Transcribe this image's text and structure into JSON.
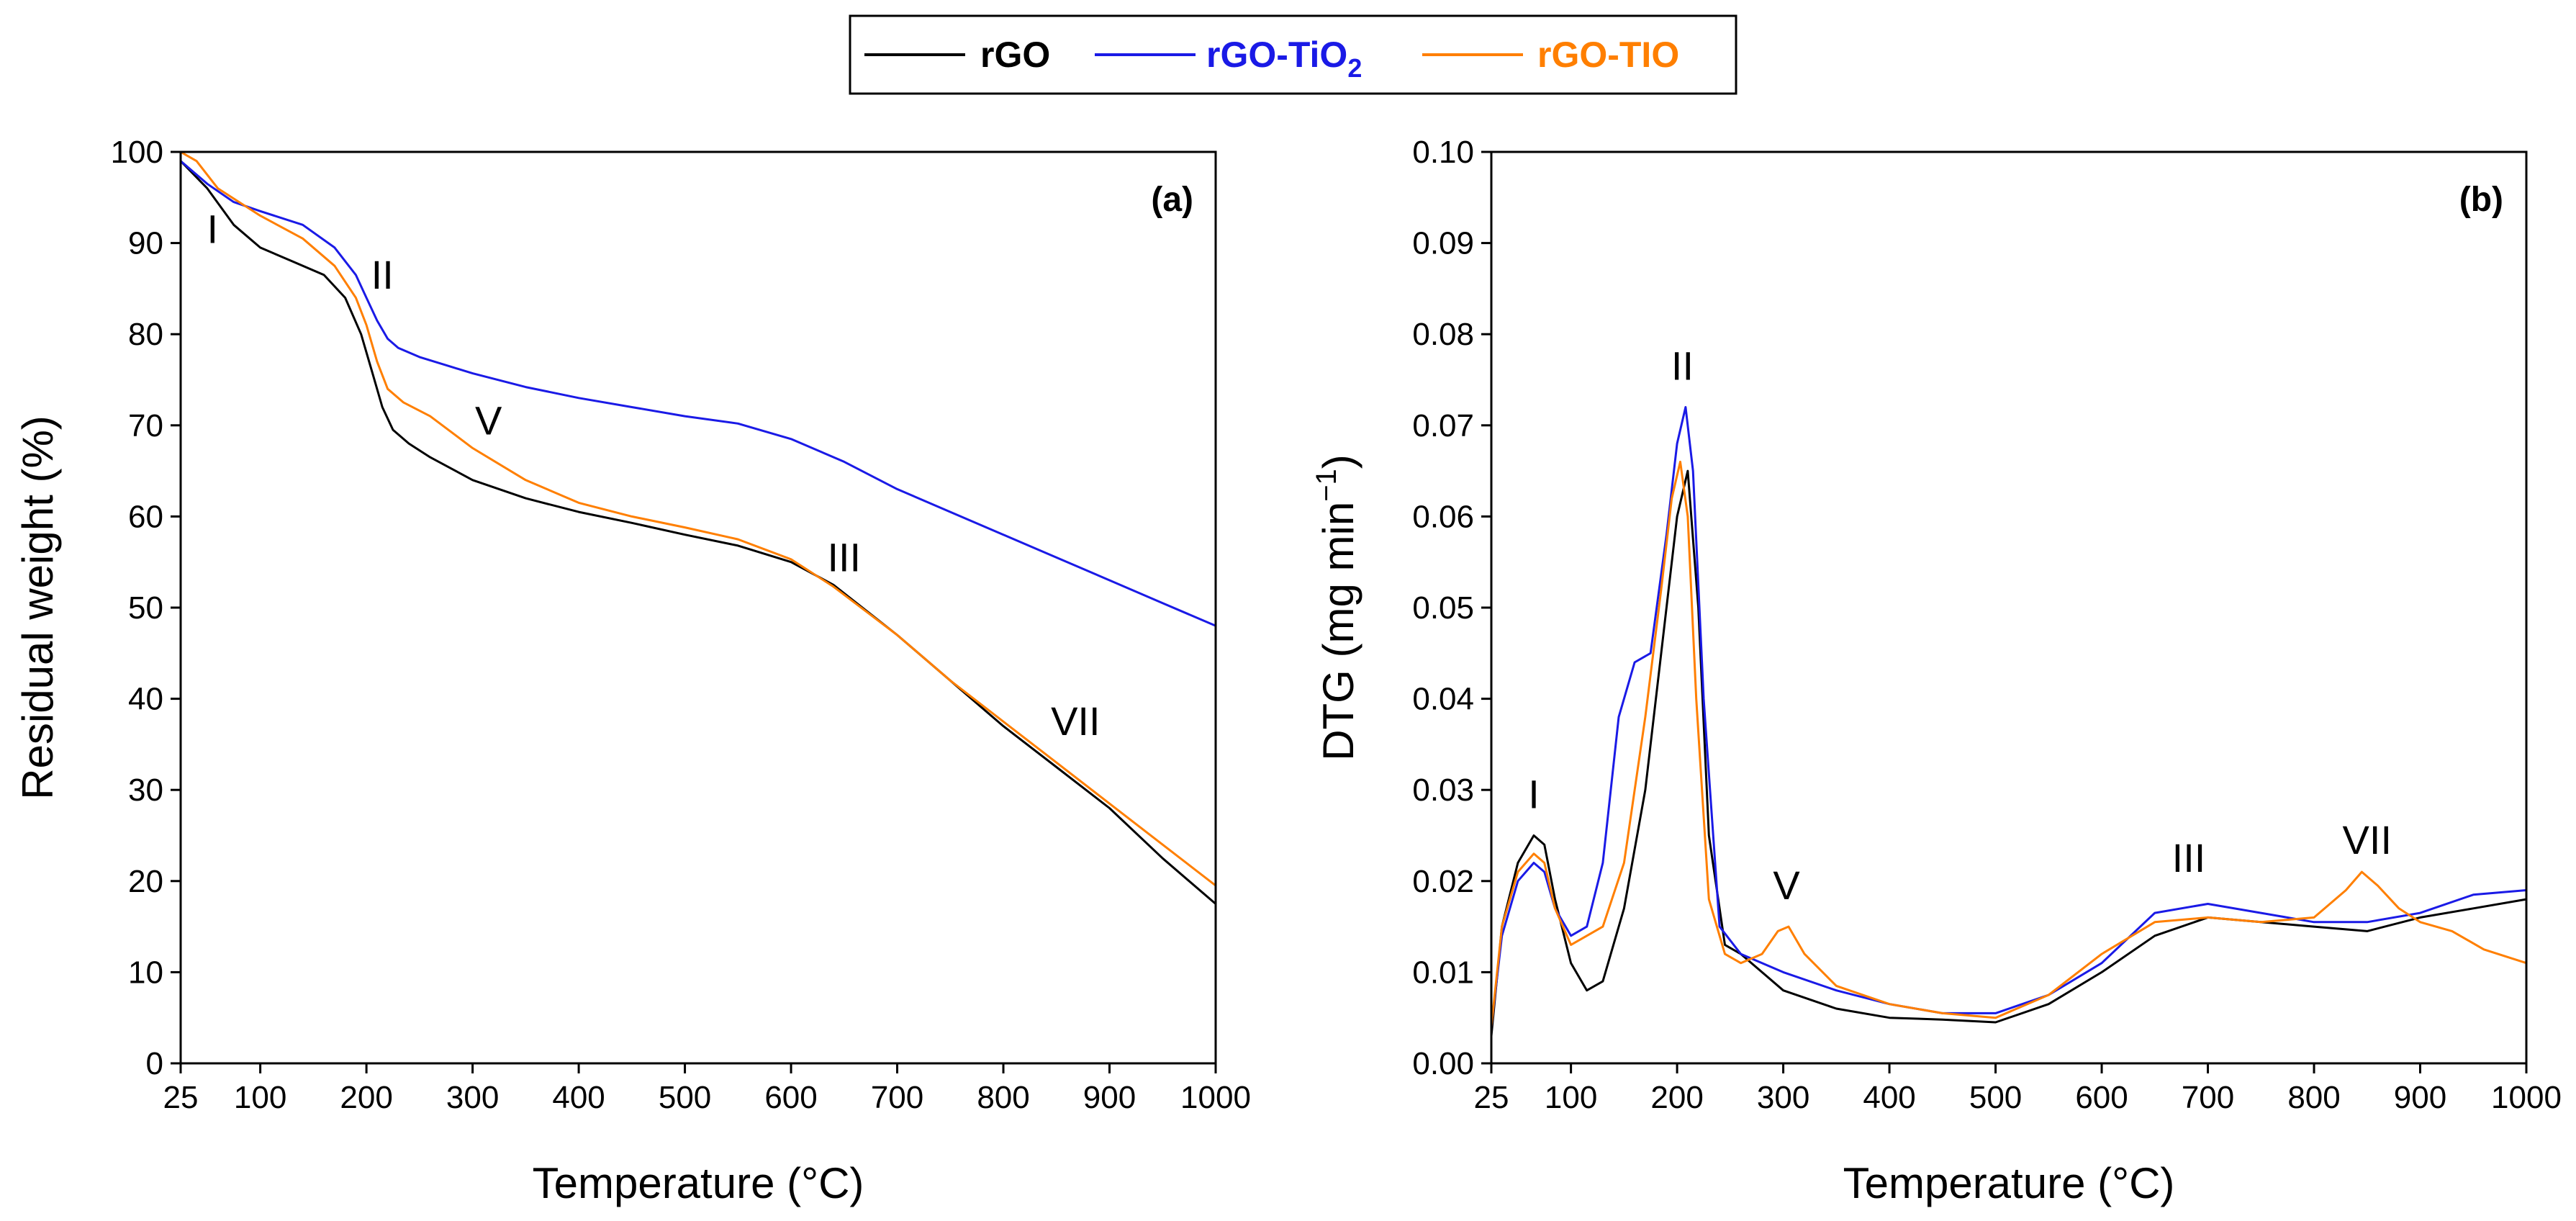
{
  "legend": {
    "position": "top-center",
    "entries": [
      {
        "name": "rGO",
        "color": "#000000"
      },
      {
        "name": "rGO-TiO",
        "subscript": "2",
        "color": "#1a1ae6"
      },
      {
        "name": "rGO-TIO",
        "color": "#ff7f00"
      }
    ]
  },
  "chart_data": [
    {
      "type": "line",
      "panel_label": "(a)",
      "xlabel": "Temperature (°C)",
      "ylabel": "Residual weight (%)",
      "xlim": [
        25,
        1000
      ],
      "ylim": [
        0,
        100
      ],
      "xticks": [
        25,
        100,
        200,
        300,
        400,
        500,
        600,
        700,
        800,
        900,
        1000
      ],
      "yticks": [
        0,
        10,
        20,
        30,
        40,
        50,
        60,
        70,
        80,
        90,
        100
      ],
      "grid": false,
      "annotations": [
        {
          "text": "I",
          "x": 55,
          "y": 90
        },
        {
          "text": "II",
          "x": 215,
          "y": 85
        },
        {
          "text": "V",
          "x": 315,
          "y": 69
        },
        {
          "text": "III",
          "x": 650,
          "y": 54
        },
        {
          "text": "VII",
          "x": 868,
          "y": 36
        }
      ],
      "series": [
        {
          "name": "rGO",
          "color": "#000000",
          "x": [
            25,
            50,
            75,
            100,
            130,
            160,
            180,
            195,
            205,
            215,
            225,
            240,
            260,
            300,
            350,
            400,
            450,
            500,
            550,
            600,
            640,
            700,
            750,
            800,
            850,
            900,
            950,
            1000
          ],
          "y": [
            99,
            96,
            92,
            89.5,
            88,
            86.5,
            84,
            80,
            76,
            72,
            69.5,
            68,
            66.5,
            64,
            62,
            60.5,
            59.3,
            58,
            56.8,
            55,
            52.5,
            47,
            42,
            37,
            32.5,
            28,
            22.5,
            17.5
          ]
        },
        {
          "name": "rGO-TiO2",
          "color": "#1a1ae6",
          "x": [
            25,
            50,
            75,
            100,
            140,
            170,
            190,
            200,
            210,
            220,
            230,
            250,
            300,
            350,
            400,
            450,
            500,
            550,
            600,
            650,
            700,
            750,
            800,
            850,
            900,
            950,
            1000
          ],
          "y": [
            99,
            96.5,
            94.5,
            93.5,
            92,
            89.5,
            86.5,
            84,
            81.5,
            79.5,
            78.5,
            77.5,
            75.7,
            74.2,
            73,
            72,
            71,
            70.2,
            68.5,
            66,
            63,
            60.5,
            58,
            55.5,
            53,
            50.5,
            48
          ]
        },
        {
          "name": "rGO-TIO",
          "color": "#ff7f00",
          "x": [
            25,
            40,
            60,
            100,
            140,
            170,
            190,
            200,
            210,
            220,
            235,
            260,
            300,
            350,
            400,
            450,
            500,
            550,
            600,
            640,
            700,
            750,
            800,
            850,
            900,
            950,
            1000
          ],
          "y": [
            100,
            99,
            96,
            93,
            90.5,
            87.5,
            84,
            81,
            77,
            74,
            72.5,
            71,
            67.5,
            64,
            61.5,
            60,
            58.8,
            57.5,
            55.3,
            52.3,
            47,
            42,
            37.5,
            33,
            28.5,
            24,
            19.5
          ]
        }
      ]
    },
    {
      "type": "line",
      "panel_label": "(b)",
      "xlabel": "Temperature (°C)",
      "ylabel": "DTG (mg min",
      "ylabel_superscript": "−1",
      "ylabel_close": ")",
      "xlim": [
        25,
        1000
      ],
      "ylim": [
        0,
        0.1
      ],
      "xticks": [
        25,
        100,
        200,
        300,
        400,
        500,
        600,
        700,
        800,
        900,
        1000
      ],
      "yticks": [
        "0.00",
        "0.01",
        "0.02",
        "0.03",
        "0.04",
        "0.05",
        "0.06",
        "0.07",
        "0.08",
        "0.09",
        "0.10"
      ],
      "grid": false,
      "annotations": [
        {
          "text": "I",
          "x": 65,
          "y": 0.028
        },
        {
          "text": "II",
          "x": 205,
          "y": 0.075
        },
        {
          "text": "V",
          "x": 303,
          "y": 0.018
        },
        {
          "text": "III",
          "x": 682,
          "y": 0.021
        },
        {
          "text": "VII",
          "x": 850,
          "y": 0.023
        }
      ],
      "series": [
        {
          "name": "rGO",
          "color": "#000000",
          "x": [
            25,
            35,
            50,
            65,
            75,
            85,
            100,
            115,
            130,
            150,
            170,
            185,
            200,
            210,
            220,
            230,
            245,
            260,
            280,
            300,
            350,
            400,
            450,
            500,
            550,
            600,
            650,
            700,
            750,
            800,
            850,
            900,
            950,
            1000
          ],
          "y": [
            0.003,
            0.015,
            0.022,
            0.025,
            0.024,
            0.018,
            0.011,
            0.008,
            0.009,
            0.017,
            0.03,
            0.045,
            0.06,
            0.065,
            0.05,
            0.025,
            0.013,
            0.012,
            0.01,
            0.008,
            0.006,
            0.005,
            0.0048,
            0.0045,
            0.0065,
            0.01,
            0.014,
            0.016,
            0.0155,
            0.015,
            0.0145,
            0.016,
            0.017,
            0.018
          ]
        },
        {
          "name": "rGO-TiO2",
          "color": "#1a1ae6",
          "x": [
            25,
            35,
            50,
            65,
            75,
            85,
            100,
            115,
            130,
            145,
            160,
            175,
            190,
            200,
            208,
            215,
            225,
            240,
            260,
            300,
            350,
            400,
            450,
            500,
            550,
            600,
            650,
            700,
            750,
            800,
            850,
            900,
            950,
            1000
          ],
          "y": [
            0.004,
            0.014,
            0.02,
            0.022,
            0.021,
            0.017,
            0.014,
            0.015,
            0.022,
            0.038,
            0.044,
            0.045,
            0.058,
            0.068,
            0.072,
            0.065,
            0.04,
            0.015,
            0.012,
            0.01,
            0.008,
            0.0065,
            0.0055,
            0.0055,
            0.0075,
            0.011,
            0.0165,
            0.0175,
            0.0165,
            0.0155,
            0.0155,
            0.0165,
            0.0185,
            0.019
          ]
        },
        {
          "name": "rGO-TIO",
          "color": "#ff7f00",
          "x": [
            25,
            35,
            50,
            65,
            75,
            85,
            100,
            115,
            130,
            150,
            170,
            185,
            195,
            203,
            210,
            218,
            230,
            245,
            260,
            280,
            295,
            305,
            320,
            350,
            400,
            450,
            500,
            550,
            600,
            650,
            700,
            750,
            800,
            830,
            845,
            860,
            880,
            900,
            930,
            960,
            1000
          ],
          "y": [
            0.004,
            0.015,
            0.021,
            0.023,
            0.022,
            0.017,
            0.013,
            0.014,
            0.015,
            0.022,
            0.038,
            0.052,
            0.062,
            0.066,
            0.06,
            0.04,
            0.018,
            0.012,
            0.011,
            0.012,
            0.0145,
            0.015,
            0.012,
            0.0085,
            0.0065,
            0.0055,
            0.005,
            0.0075,
            0.012,
            0.0155,
            0.016,
            0.0155,
            0.016,
            0.019,
            0.021,
            0.0195,
            0.017,
            0.0155,
            0.0145,
            0.0125,
            0.011
          ]
        }
      ]
    }
  ]
}
